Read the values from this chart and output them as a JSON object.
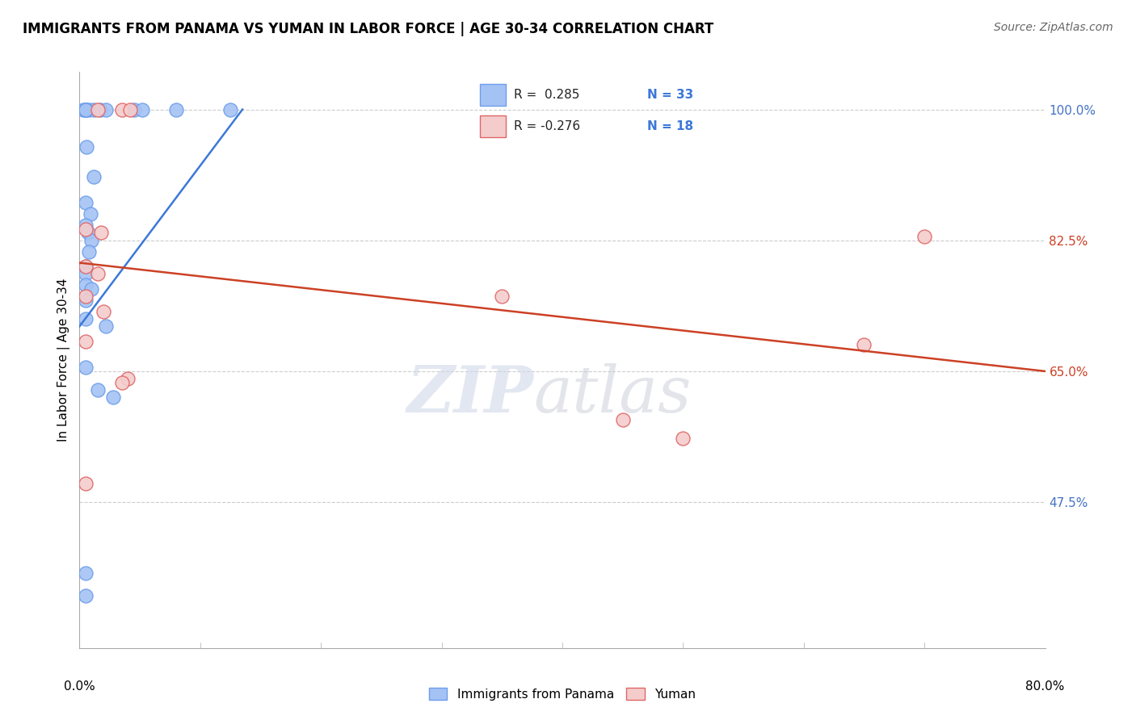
{
  "title": "IMMIGRANTS FROM PANAMA VS YUMAN IN LABOR FORCE | AGE 30-34 CORRELATION CHART",
  "source": "Source: ZipAtlas.com",
  "ylabel": "In Labor Force | Age 30-34",
  "yticks": [
    47.5,
    65.0,
    82.5,
    100.0
  ],
  "xlim": [
    0.0,
    80.0
  ],
  "ylim": [
    28.0,
    105.0
  ],
  "watermark_zip": "ZIP",
  "watermark_atlas": "atlas",
  "legend_r_blue": "R =  0.285",
  "legend_n_blue": "N = 33",
  "legend_r_pink": "R = -0.276",
  "legend_n_pink": "N = 18",
  "legend_label_blue": "Immigrants from Panama",
  "legend_label_pink": "Yuman",
  "blue_face_color": "#a4c2f4",
  "pink_face_color": "#f4cccc",
  "blue_edge_color": "#6d9eeb",
  "pink_edge_color": "#e06666",
  "blue_line_color": "#3c78d8",
  "pink_line_color": "#cc4125",
  "blue_dots": [
    [
      0.3,
      100.0
    ],
    [
      0.8,
      100.0
    ],
    [
      1.2,
      100.0
    ],
    [
      1.7,
      100.0
    ],
    [
      2.2,
      100.0
    ],
    [
      4.5,
      100.0
    ],
    [
      5.2,
      100.0
    ],
    [
      8.0,
      100.0
    ],
    [
      12.5,
      100.0
    ],
    [
      0.6,
      95.0
    ],
    [
      1.2,
      91.0
    ],
    [
      0.5,
      87.5
    ],
    [
      0.9,
      86.0
    ],
    [
      0.5,
      84.5
    ],
    [
      0.7,
      83.5
    ],
    [
      1.0,
      82.5
    ],
    [
      0.8,
      81.0
    ],
    [
      0.5,
      79.0
    ],
    [
      0.5,
      78.0
    ],
    [
      0.5,
      76.5
    ],
    [
      1.0,
      76.0
    ],
    [
      0.5,
      74.5
    ],
    [
      0.5,
      72.0
    ],
    [
      2.2,
      71.0
    ],
    [
      0.5,
      65.5
    ],
    [
      1.5,
      62.5
    ],
    [
      2.8,
      61.5
    ],
    [
      0.5,
      38.0
    ],
    [
      0.5,
      35.0
    ],
    [
      0.5,
      100.0
    ],
    [
      0.5,
      100.0
    ],
    [
      0.5,
      100.0
    ],
    [
      0.5,
      100.0
    ]
  ],
  "pink_dots": [
    [
      1.5,
      100.0
    ],
    [
      3.5,
      100.0
    ],
    [
      4.2,
      100.0
    ],
    [
      0.5,
      84.0
    ],
    [
      1.8,
      83.5
    ],
    [
      0.5,
      79.0
    ],
    [
      1.5,
      78.0
    ],
    [
      0.5,
      75.0
    ],
    [
      2.0,
      73.0
    ],
    [
      0.5,
      69.0
    ],
    [
      4.0,
      64.0
    ],
    [
      3.5,
      63.5
    ],
    [
      35.0,
      75.0
    ],
    [
      45.0,
      58.5
    ],
    [
      50.0,
      56.0
    ],
    [
      65.0,
      68.5
    ],
    [
      70.0,
      83.0
    ],
    [
      0.5,
      50.0
    ]
  ],
  "blue_trendline_x": [
    0.0,
    13.5
  ],
  "blue_trendline_y": [
    71.0,
    100.0
  ],
  "pink_trendline_x": [
    0.0,
    80.0
  ],
  "pink_trendline_y": [
    79.5,
    65.0
  ],
  "grid_color": "#cccccc",
  "background_color": "#ffffff",
  "title_fontsize": 12,
  "source_fontsize": 10,
  "axis_label_fontsize": 11,
  "tick_fontsize": 11,
  "right_ytick_colors": [
    "#4472c4",
    "#cc4125",
    "#cc4125",
    "#4472c4"
  ]
}
